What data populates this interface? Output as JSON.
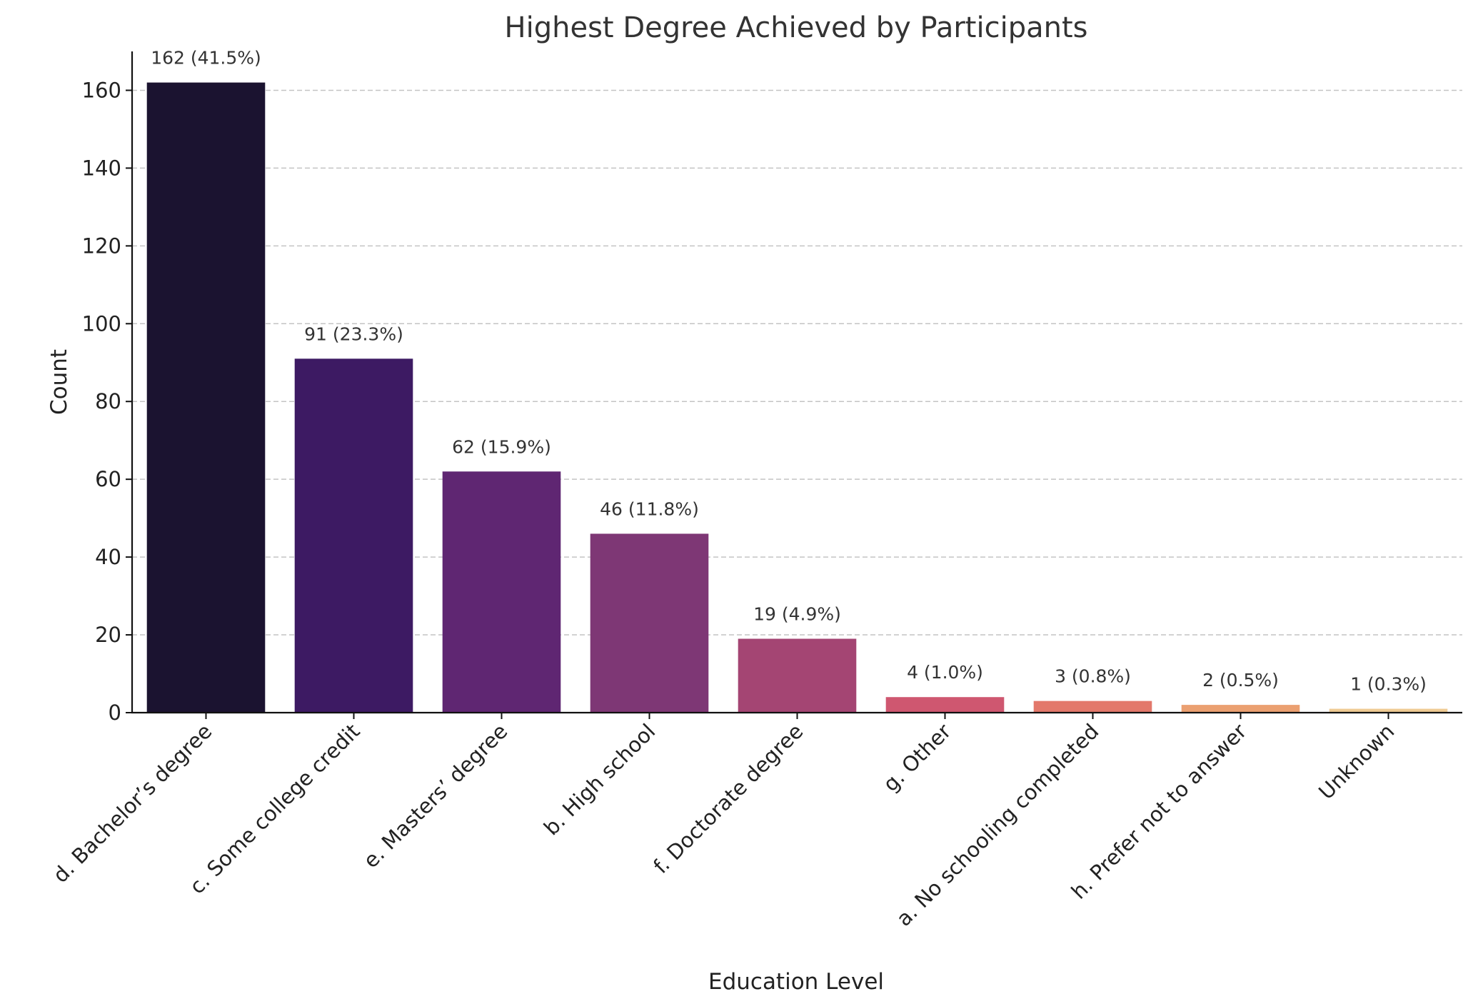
{
  "chart_data": {
    "type": "bar",
    "title": "Highest Degree Achieved by Participants",
    "xlabel": "Education Level",
    "ylabel": "Count",
    "ylim": [
      0,
      170
    ],
    "yticks": [
      0,
      20,
      40,
      60,
      80,
      100,
      120,
      140,
      160
    ],
    "grid": "horizontal dashed",
    "categories": [
      "d. Bachelor’s degree",
      "c. Some college credit",
      "e. Masters’ degree",
      "b. High school",
      "f. Doctorate degree",
      "g. Other",
      "a. No schooling completed",
      "h. Prefer not to answer",
      "Unknown"
    ],
    "values": [
      162,
      91,
      62,
      46,
      19,
      4,
      3,
      2,
      1
    ],
    "data_labels": [
      "162 (41.5%)",
      "91 (23.3%)",
      "62 (15.9%)",
      "46 (11.8%)",
      "19 (4.9%)",
      "4 (1.0%)",
      "3 (0.8%)",
      "2 (0.5%)",
      "1 (0.3%)"
    ],
    "colors": [
      "#1b1330",
      "#3d1a63",
      "#5f2672",
      "#7e3775",
      "#a44573",
      "#cf5770",
      "#e3786b",
      "#eba071",
      "#efcb94"
    ]
  }
}
